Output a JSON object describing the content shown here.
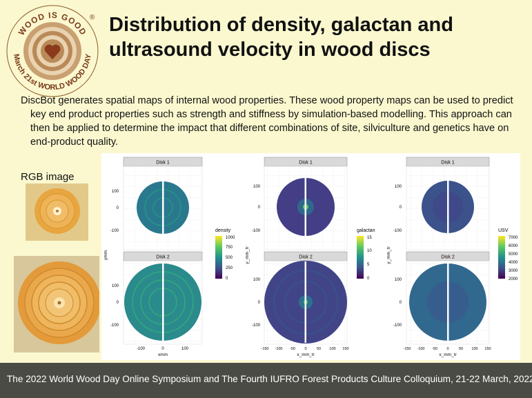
{
  "logo": {
    "top_text": "WOOD IS GOOD",
    "bottom_text": "March 21st WORLD WOOD DAY",
    "registered_mark": "®",
    "icon": "heart-icon"
  },
  "title": {
    "line1": "Distribution of density, galactan and",
    "line2": "ultrasound velocity in wood discs"
  },
  "description": {
    "line1": "DiscBot generates spatial maps of internal wood properties. These wood property maps can be used to predict",
    "line2": "key end product properties such as strength and stiffness by simulation-based modelling. This approach can",
    "line3": "then be applied to determine the impact that different combinations of site, silviculture and genetics have on",
    "line4": "end-product quality."
  },
  "rgb": {
    "label": "RGB image"
  },
  "panels": [
    {
      "strip_top": "Disk 1",
      "strip_bottom": "Disk 2",
      "ylabel": "ymm",
      "xlabel": "xmm",
      "yticks": [
        "100",
        "0",
        "-100"
      ],
      "xticks": [
        "-100",
        "0",
        "100"
      ],
      "legend_title": "density",
      "legend_ticks": [
        "1000",
        "750",
        "500",
        "250",
        "0"
      ]
    },
    {
      "strip_top": "Disk 1",
      "strip_bottom": "Disk 2",
      "ylabel": "y_mm_tr",
      "xlabel": "x_mm_tr",
      "yticks": [
        "100",
        "0",
        "-100"
      ],
      "xticks": [
        "-150",
        "-100",
        "-50",
        "0",
        "50",
        "100",
        "150"
      ],
      "legend_title": "galactan",
      "legend_ticks": [
        "15",
        "10",
        "5",
        "0"
      ]
    },
    {
      "strip_top": "Disk 1",
      "strip_bottom": "Disk 2",
      "ylabel": "y_mm_tr",
      "xlabel": "x_mm_tr",
      "yticks": [
        "100",
        "0",
        "-100"
      ],
      "xticks": [
        "-150",
        "-100",
        "-50",
        "0",
        "50",
        "100",
        "150"
      ],
      "legend_title": "USV",
      "legend_ticks": [
        "7000",
        "6000",
        "5000",
        "4000",
        "3000",
        "2000"
      ]
    }
  ],
  "colors": {
    "background": "#fbf8cf",
    "footer": "#4b4b45",
    "viridis_low": "#440154",
    "viridis_mid": "#21918c",
    "viridis_high": "#fde725"
  },
  "footer": {
    "text": "The 2022 World Wood Day Online Symposium and The Fourth IUFRO Forest Products Culture Colloquium, 21-22 March, 2022."
  }
}
